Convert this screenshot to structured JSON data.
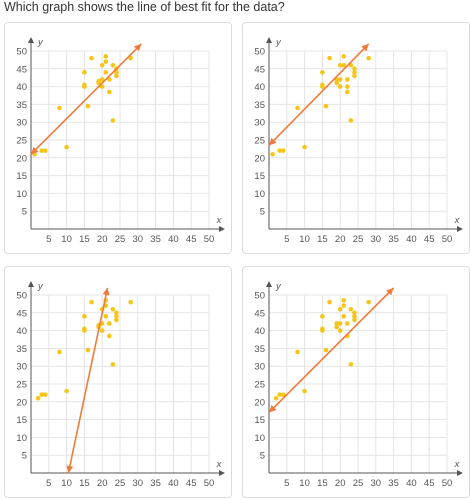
{
  "question": {
    "text": "Which graph shows the line of best fit for the data?"
  },
  "chart_data": [
    {
      "type": "scatter",
      "xlabel": "x",
      "ylabel": "y",
      "xlim": [
        0,
        50
      ],
      "ylim": [
        0,
        50
      ],
      "xticks": [
        5,
        10,
        15,
        20,
        25,
        30,
        35,
        40,
        45,
        50
      ],
      "yticks": [
        5,
        10,
        15,
        20,
        25,
        30,
        35,
        40,
        45,
        50
      ],
      "grid": true,
      "points": [
        [
          1,
          21
        ],
        [
          3,
          22
        ],
        [
          4,
          22
        ],
        [
          8,
          34
        ],
        [
          10,
          23
        ],
        [
          15,
          40
        ],
        [
          15,
          40.5
        ],
        [
          15,
          44
        ],
        [
          16,
          34.5
        ],
        [
          17,
          48
        ],
        [
          19,
          41
        ],
        [
          19,
          41.5
        ],
        [
          20,
          42
        ],
        [
          20,
          40
        ],
        [
          20,
          46
        ],
        [
          21,
          47
        ],
        [
          21,
          44
        ],
        [
          21,
          48.5
        ],
        [
          22,
          42
        ],
        [
          22,
          38.5
        ],
        [
          23,
          46
        ],
        [
          23,
          30.5
        ],
        [
          24,
          43
        ],
        [
          24,
          44
        ],
        [
          24,
          45
        ],
        [
          28,
          48
        ]
      ],
      "line": {
        "x1": 0,
        "y1": 21,
        "x2": 31,
        "y2": 52
      }
    },
    {
      "type": "scatter",
      "xlabel": "x",
      "ylabel": "y",
      "xlim": [
        0,
        50
      ],
      "ylim": [
        0,
        50
      ],
      "xticks": [
        5,
        10,
        15,
        20,
        25,
        30,
        35,
        40,
        45,
        50
      ],
      "yticks": [
        5,
        10,
        15,
        20,
        25,
        30,
        35,
        40,
        45,
        50
      ],
      "grid": true,
      "points": [
        [
          1,
          21
        ],
        [
          3,
          22
        ],
        [
          4,
          22
        ],
        [
          8,
          34
        ],
        [
          10,
          23
        ],
        [
          15,
          40
        ],
        [
          15,
          40.5
        ],
        [
          15,
          44
        ],
        [
          16,
          34.5
        ],
        [
          17,
          48
        ],
        [
          19,
          41
        ],
        [
          19,
          42
        ],
        [
          20,
          40
        ],
        [
          20,
          42
        ],
        [
          20,
          46
        ],
        [
          21,
          46
        ],
        [
          21,
          48.5
        ],
        [
          22,
          42
        ],
        [
          22,
          40
        ],
        [
          22,
          38.5
        ],
        [
          23,
          46
        ],
        [
          23,
          30.5
        ],
        [
          24,
          43
        ],
        [
          24,
          44
        ],
        [
          24,
          45
        ],
        [
          28,
          48
        ]
      ],
      "line": {
        "x1": 0,
        "y1": 23.5,
        "x2": 28,
        "y2": 52
      }
    },
    {
      "type": "scatter",
      "xlabel": "x",
      "ylabel": "y",
      "xlim": [
        0,
        50
      ],
      "ylim": [
        0,
        50
      ],
      "xticks": [
        5,
        10,
        15,
        20,
        25,
        30,
        35,
        40,
        45,
        50
      ],
      "yticks": [
        5,
        10,
        15,
        20,
        25,
        30,
        35,
        40,
        45,
        50
      ],
      "grid": true,
      "points": [
        [
          2,
          21
        ],
        [
          3,
          22
        ],
        [
          4,
          22
        ],
        [
          8,
          34
        ],
        [
          10,
          23
        ],
        [
          15,
          40
        ],
        [
          15,
          40.5
        ],
        [
          15,
          44
        ],
        [
          16,
          34.5
        ],
        [
          17,
          48
        ],
        [
          19,
          41
        ],
        [
          19,
          41.5
        ],
        [
          20,
          42
        ],
        [
          20,
          40
        ],
        [
          20,
          46
        ],
        [
          21,
          47
        ],
        [
          21,
          44
        ],
        [
          21,
          48.5
        ],
        [
          22,
          42
        ],
        [
          22,
          38.5
        ],
        [
          23,
          46
        ],
        [
          23,
          30.5
        ],
        [
          24,
          43
        ],
        [
          24,
          44
        ],
        [
          24,
          45
        ],
        [
          28,
          48
        ]
      ],
      "line": {
        "x1": 10.5,
        "y1": 0,
        "x2": 21.5,
        "y2": 52
      }
    },
    {
      "type": "scatter",
      "xlabel": "x",
      "ylabel": "y",
      "xlim": [
        0,
        50
      ],
      "ylim": [
        0,
        50
      ],
      "xticks": [
        5,
        10,
        15,
        20,
        25,
        30,
        35,
        40,
        45,
        50
      ],
      "yticks": [
        5,
        10,
        15,
        20,
        25,
        30,
        35,
        40,
        45,
        50
      ],
      "grid": true,
      "points": [
        [
          2,
          21
        ],
        [
          3,
          22
        ],
        [
          4,
          22
        ],
        [
          8,
          34
        ],
        [
          10,
          23
        ],
        [
          15,
          40
        ],
        [
          15,
          40.5
        ],
        [
          15,
          44
        ],
        [
          16,
          34.5
        ],
        [
          17,
          48
        ],
        [
          19,
          41
        ],
        [
          19,
          42
        ],
        [
          20,
          40
        ],
        [
          20,
          42
        ],
        [
          20,
          46
        ],
        [
          21,
          47
        ],
        [
          21,
          44
        ],
        [
          21,
          48.5
        ],
        [
          22,
          42
        ],
        [
          22,
          38.5
        ],
        [
          23,
          46
        ],
        [
          23,
          30.5
        ],
        [
          24,
          43
        ],
        [
          24,
          44
        ],
        [
          24,
          45
        ],
        [
          28,
          48
        ]
      ],
      "line": {
        "x1": 0,
        "y1": 17,
        "x2": 35,
        "y2": 52
      }
    }
  ],
  "colors": {
    "point": "#f5c518",
    "line": "#f07a3a",
    "grid": "#e4e4e4",
    "axis": "#555555",
    "card_border": "#dcdcdc"
  }
}
